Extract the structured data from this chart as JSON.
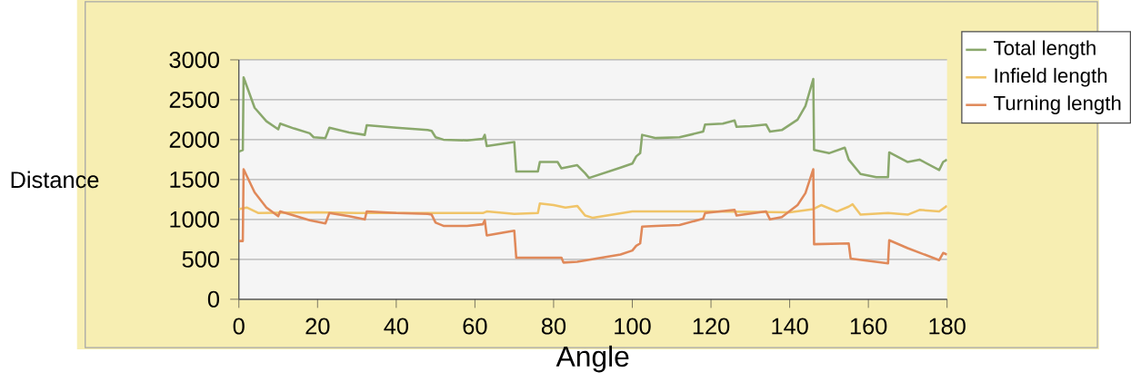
{
  "chart_data": {
    "type": "line",
    "xlabel": "Angle",
    "ylabel": "Distance",
    "xlim": [
      0,
      180
    ],
    "xticks": [
      0,
      20,
      40,
      60,
      80,
      100,
      120,
      140,
      160,
      180
    ],
    "ylim": [
      0,
      3000
    ],
    "yticks": [
      0,
      500,
      1000,
      1500,
      2000,
      2500,
      3000
    ],
    "grid": "y",
    "legend": "top right",
    "marker": "none",
    "line_style": "solid",
    "series": [
      {
        "name": "Total length",
        "color": "#8aa86c",
        "x": [
          0,
          1,
          1.2,
          4,
          7,
          10,
          10.5,
          14,
          18,
          19,
          22,
          23,
          28,
          32,
          32.5,
          40,
          48,
          49,
          50,
          52,
          58,
          62,
          62.5,
          63,
          70,
          70.5,
          76,
          76.5,
          81,
          82,
          86,
          88,
          89,
          97,
          100,
          101,
          102,
          102.5,
          106,
          112,
          118,
          118.5,
          123,
          126,
          126.5,
          130,
          134,
          135,
          138,
          142,
          144,
          146,
          146.2,
          150,
          154,
          155,
          158,
          162,
          165,
          165.3,
          170,
          173,
          178,
          179,
          180
        ],
        "values": [
          1850,
          1870,
          2780,
          2400,
          2230,
          2130,
          2200,
          2140,
          2080,
          2030,
          2020,
          2150,
          2090,
          2060,
          2180,
          2150,
          2120,
          2110,
          2030,
          2000,
          1990,
          2010,
          2060,
          1920,
          1970,
          1600,
          1600,
          1720,
          1720,
          1640,
          1680,
          1580,
          1520,
          1650,
          1700,
          1790,
          1830,
          2060,
          2020,
          2030,
          2100,
          2190,
          2200,
          2240,
          2160,
          2170,
          2190,
          2100,
          2120,
          2250,
          2420,
          2760,
          1870,
          1830,
          1900,
          1750,
          1570,
          1530,
          1530,
          1840,
          1720,
          1750,
          1620,
          1720,
          1750
        ]
      },
      {
        "name": "Infield length",
        "color": "#f0c468",
        "x": [
          0,
          2,
          5,
          20,
          30,
          50,
          62,
          63,
          70,
          76,
          76.5,
          80,
          83,
          86,
          88,
          90,
          100,
          120,
          140,
          146,
          148,
          152,
          155,
          156,
          158,
          165,
          170,
          173,
          178,
          180
        ],
        "values": [
          1130,
          1150,
          1080,
          1090,
          1080,
          1080,
          1080,
          1100,
          1070,
          1080,
          1200,
          1180,
          1150,
          1170,
          1050,
          1020,
          1100,
          1100,
          1090,
          1130,
          1180,
          1100,
          1160,
          1190,
          1060,
          1080,
          1060,
          1120,
          1100,
          1170
        ]
      },
      {
        "name": "Turning length",
        "color": "#e0895a",
        "x": [
          0,
          1,
          1.2,
          4,
          7,
          10,
          10.5,
          14,
          18,
          22,
          23,
          28,
          32,
          32.5,
          40,
          48,
          49,
          50,
          52,
          58,
          62,
          62.5,
          63,
          70,
          70.5,
          76,
          82,
          82.5,
          86,
          97,
          100,
          101,
          102,
          102.5,
          106,
          112,
          118,
          118.5,
          126,
          126.5,
          134,
          135,
          138,
          142,
          144,
          146,
          146.2,
          155,
          155.5,
          165,
          165.3,
          170,
          178,
          179,
          180
        ],
        "values": [
          730,
          730,
          1630,
          1340,
          1150,
          1040,
          1100,
          1050,
          990,
          950,
          1080,
          1040,
          1000,
          1100,
          1080,
          1070,
          1060,
          960,
          920,
          920,
          940,
          990,
          800,
          860,
          520,
          520,
          520,
          460,
          470,
          560,
          610,
          670,
          700,
          910,
          920,
          930,
          1010,
          1080,
          1120,
          1050,
          1100,
          1000,
          1030,
          1180,
          1330,
          1630,
          690,
          700,
          510,
          450,
          740,
          640,
          490,
          580,
          560
        ]
      }
    ]
  }
}
